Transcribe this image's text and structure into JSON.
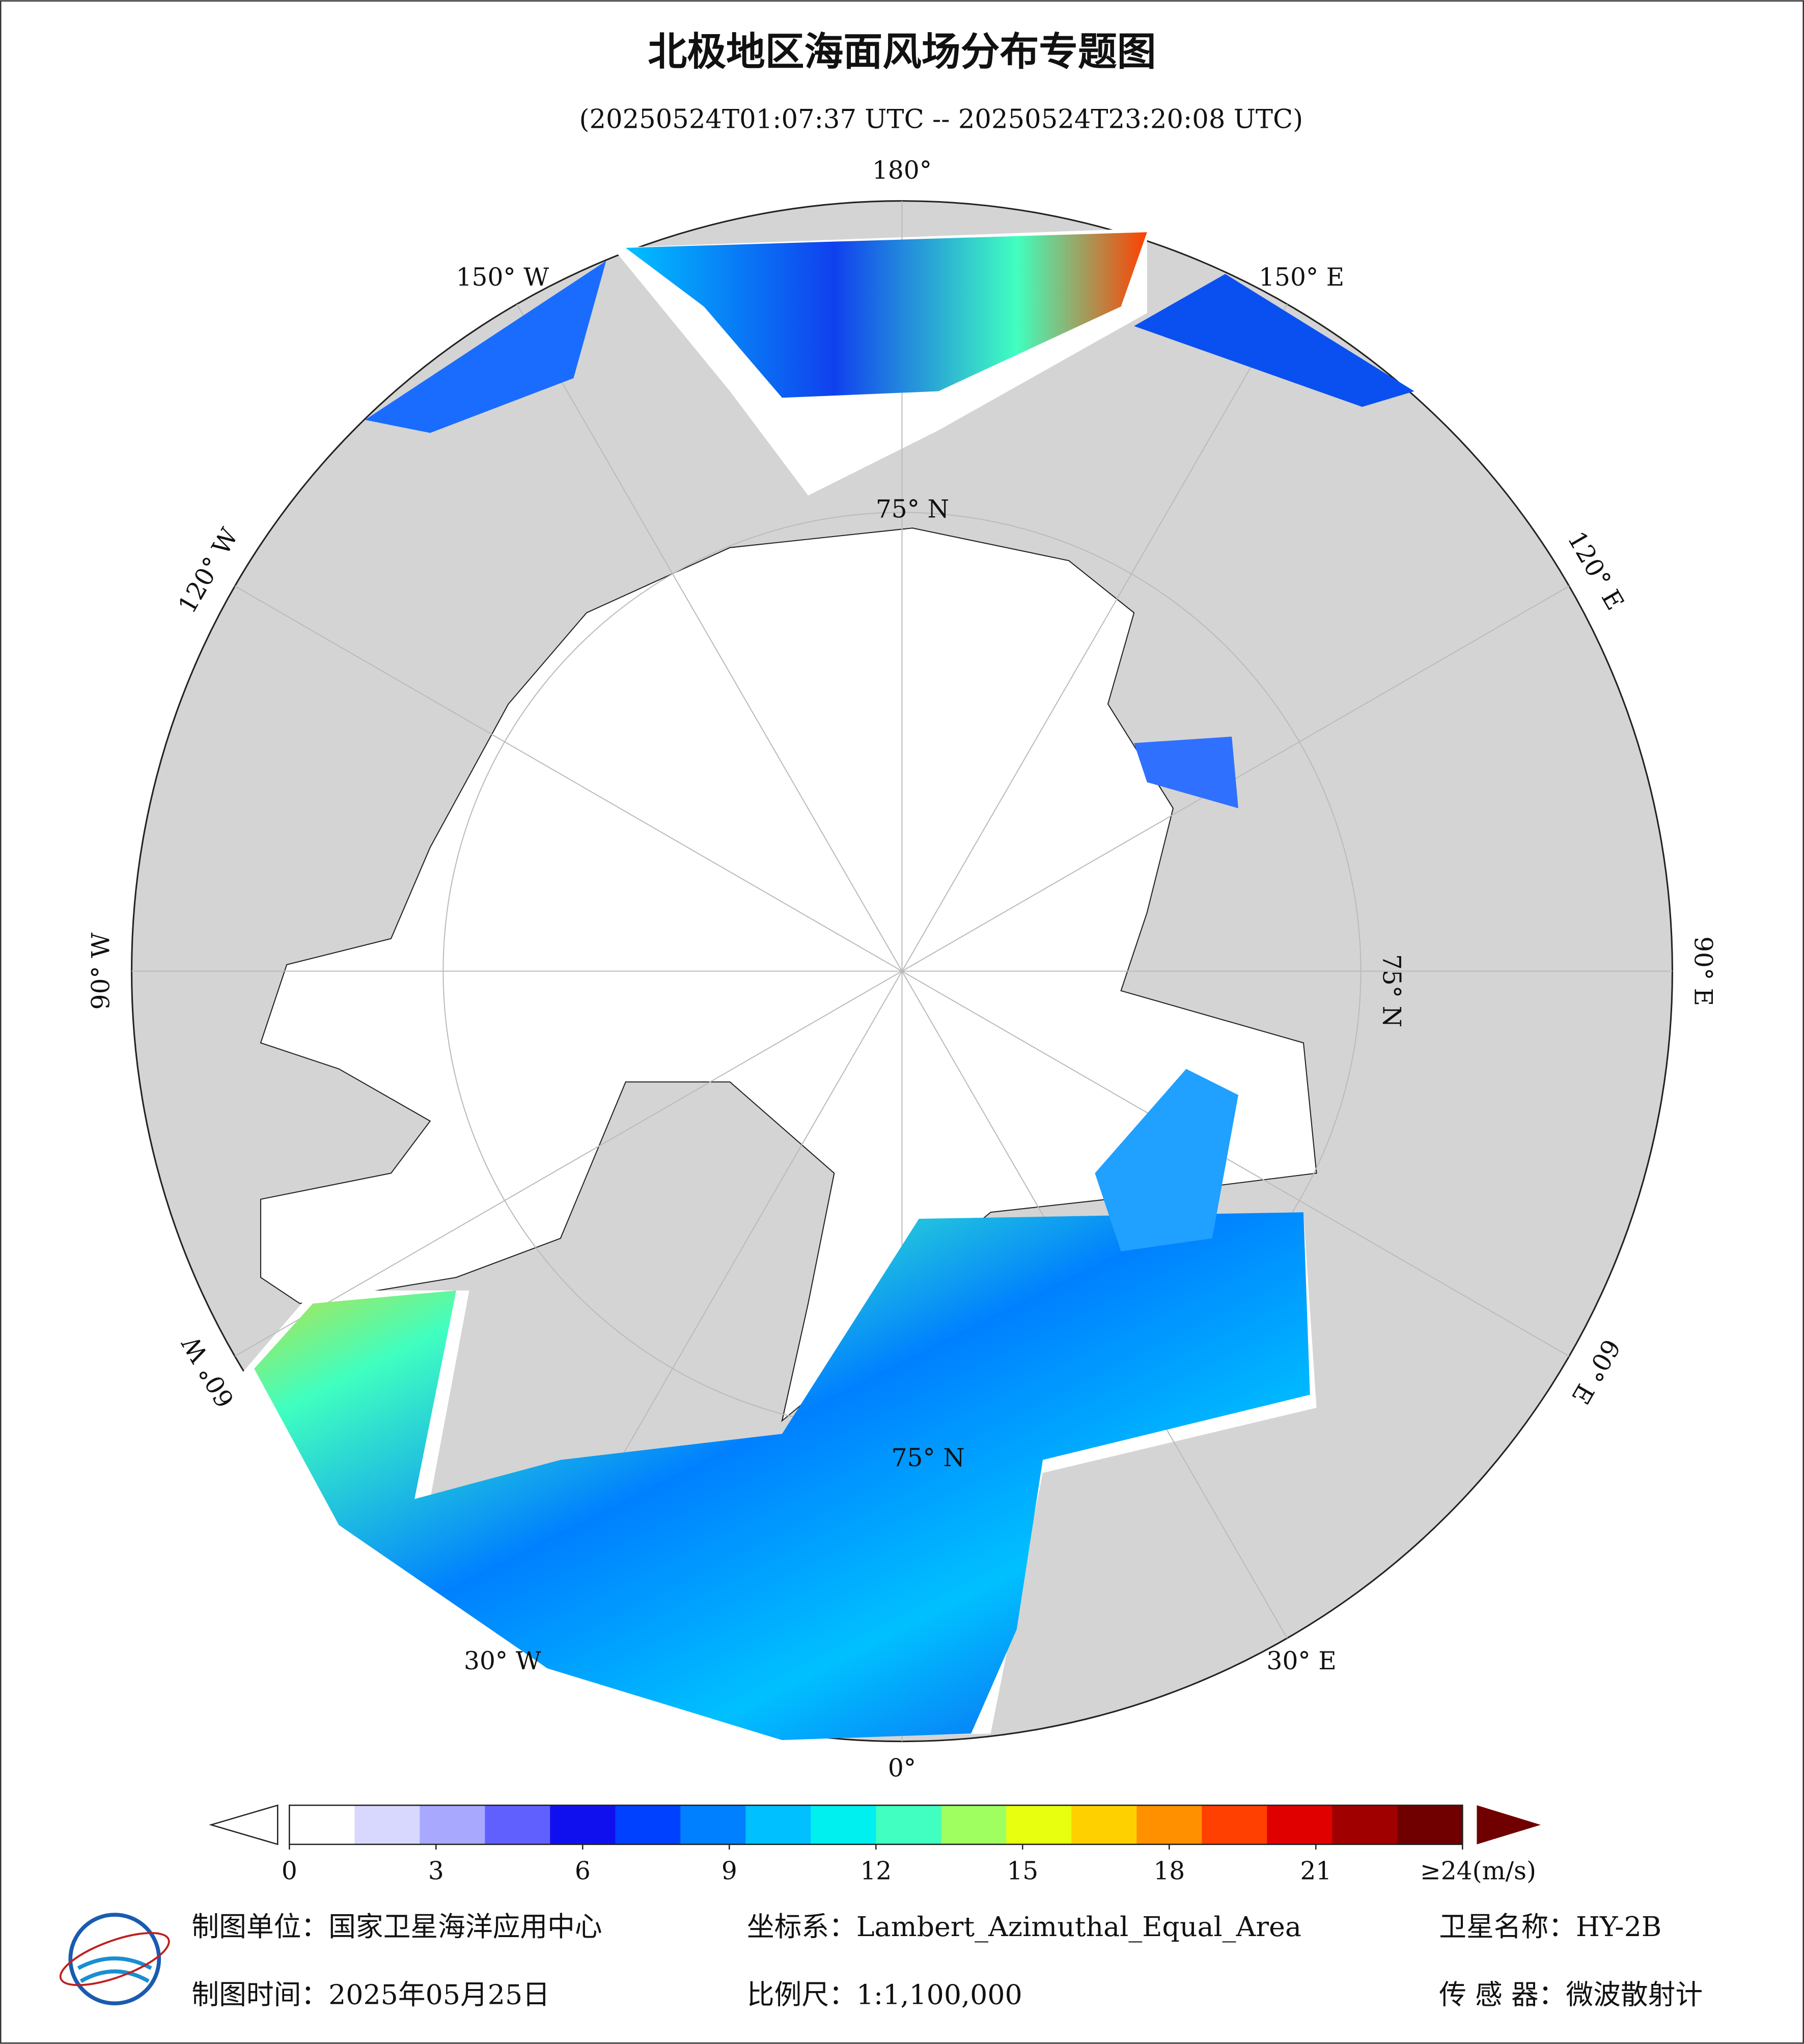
{
  "header": {
    "title": "北极地区海面风场分布专题图",
    "subtitle": "(20250524T01:07:37 UTC -- 20250524T23:20:08 UTC)"
  },
  "map": {
    "longitude_labels": [
      {
        "value": 180,
        "label": "180°"
      },
      {
        "value": -150,
        "label": "150° W"
      },
      {
        "value": -120,
        "label": "120° W"
      },
      {
        "value": -90,
        "label": "90° W"
      },
      {
        "value": -60,
        "label": "60° W"
      },
      {
        "value": -30,
        "label": "30° W"
      },
      {
        "value": 0,
        "label": "0°"
      },
      {
        "value": 30,
        "label": "30° E"
      },
      {
        "value": 60,
        "label": "60° E"
      },
      {
        "value": 90,
        "label": "90° E"
      },
      {
        "value": 120,
        "label": "120° E"
      },
      {
        "value": 150,
        "label": "150° E"
      }
    ],
    "latitude_label": "75° N"
  },
  "colorbar": {
    "range": [
      0,
      24
    ],
    "ticks": [
      0,
      3,
      6,
      9,
      12,
      15,
      18,
      21,
      {
        "value": 24,
        "label": "≥24(m/s)"
      }
    ],
    "colors": [
      "#ffffff",
      "#d8d8ff",
      "#a8a8ff",
      "#6060ff",
      "#1010ee",
      "#0040ff",
      "#0080ff",
      "#00c0ff",
      "#00f0f0",
      "#40ffc0",
      "#a0ff60",
      "#e8ff10",
      "#ffd000",
      "#ff9000",
      "#ff4000",
      "#e00000",
      "#a00000",
      "#700000"
    ]
  },
  "footer": {
    "unit": "制图单位：国家卫星海洋应用中心",
    "crs": "坐标系：Lambert_Azimuthal_Equal_Area",
    "satellite": "卫星名称：HY-2B",
    "date": "制图时间：2025年05月25日",
    "scale": "比例尺：1:1,100,000",
    "sensor": "传 感 器：微波散射计"
  }
}
